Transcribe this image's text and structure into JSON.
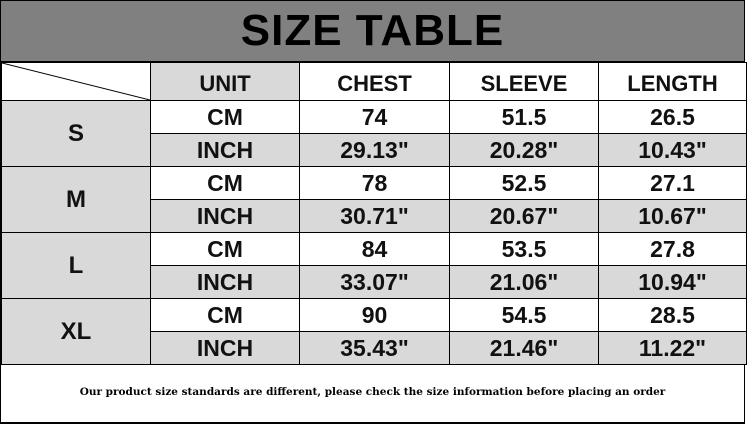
{
  "title": "SIZE TABLE",
  "columns": [
    "UNIT",
    "CHEST",
    "SLEEVE",
    "LENGTH"
  ],
  "rows": [
    {
      "size": "S",
      "cm": {
        "unit": "CM",
        "chest": "74",
        "sleeve": "51.5",
        "length": "26.5"
      },
      "inch": {
        "unit": "INCH",
        "chest": "29.13\"",
        "sleeve": "20.28\"",
        "length": "10.43\""
      }
    },
    {
      "size": "M",
      "cm": {
        "unit": "CM",
        "chest": "78",
        "sleeve": "52.5",
        "length": "27.1"
      },
      "inch": {
        "unit": "INCH",
        "chest": "30.71\"",
        "sleeve": "20.67\"",
        "length": "10.67\""
      }
    },
    {
      "size": "L",
      "cm": {
        "unit": "CM",
        "chest": "84",
        "sleeve": "53.5",
        "length": "27.8"
      },
      "inch": {
        "unit": "INCH",
        "chest": "33.07\"",
        "sleeve": "21.06\"",
        "length": "10.94\""
      }
    },
    {
      "size": "XL",
      "cm": {
        "unit": "CM",
        "chest": "90",
        "sleeve": "54.5",
        "length": "28.5"
      },
      "inch": {
        "unit": "INCH",
        "chest": "35.43\"",
        "sleeve": "21.46\"",
        "length": "11.22\""
      }
    }
  ],
  "footer_note": "Our product size standards are different, please check the size information before placing an order",
  "colors": {
    "title_bg": "#808080",
    "shaded": "#d9d9d9",
    "plain": "#ffffff"
  }
}
